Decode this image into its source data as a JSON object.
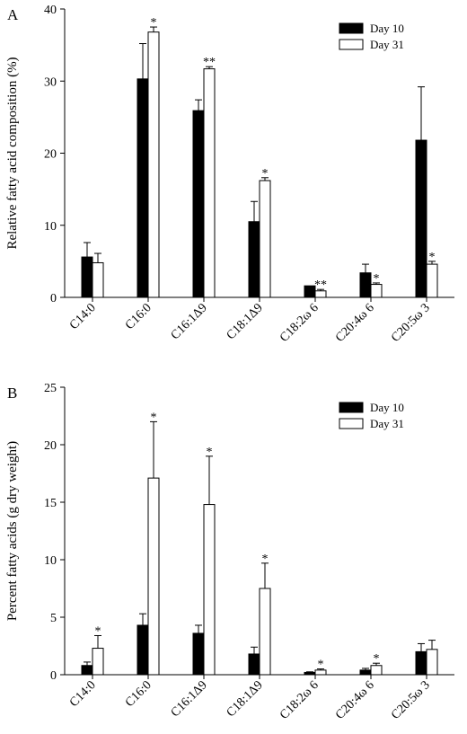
{
  "chart_data": [
    {
      "panel_letter": "A",
      "type": "bar",
      "categories": [
        "C14:0",
        "C16:0",
        "C16:1Δ9",
        "C18:1Δ9",
        "C18:2ω 6",
        "C20:4ω 6",
        "C20:5ω 3"
      ],
      "xlabel": "",
      "ylabel": "Relative fatty acid composition (%)",
      "ylim": [
        0,
        40
      ],
      "yticks": [
        0,
        10,
        20,
        30,
        40
      ],
      "grid": false,
      "legend_position": "top-right",
      "series": [
        {
          "name": "Day 10",
          "color": "#000000",
          "fill": "solid",
          "values": [
            5.6,
            30.3,
            25.9,
            10.5,
            1.6,
            3.4,
            21.8
          ],
          "error": [
            2.0,
            4.9,
            1.5,
            2.8,
            0.0,
            1.2,
            7.4
          ],
          "annotations": [
            "",
            "",
            "",
            "",
            "",
            "",
            ""
          ]
        },
        {
          "name": "Day 31",
          "color": "#ffffff",
          "fill": "open",
          "values": [
            4.8,
            36.8,
            31.7,
            16.2,
            0.9,
            1.8,
            4.6
          ],
          "error": [
            1.3,
            0.7,
            0.3,
            0.4,
            0.2,
            0.2,
            0.4
          ],
          "annotations": [
            "",
            "*",
            "**",
            "*",
            "**",
            "*",
            "*"
          ]
        }
      ]
    },
    {
      "panel_letter": "B",
      "type": "bar",
      "categories": [
        "C14:0",
        "C16:0",
        "C16:1Δ9",
        "C18:1Δ9",
        "C18:2ω 6",
        "C20:4ω 6",
        "C20:5ω 3"
      ],
      "xlabel": "",
      "ylabel": "Percent fatty acids (g dry weight)",
      "ylim": [
        0,
        25
      ],
      "yticks": [
        0,
        5,
        10,
        15,
        20,
        25
      ],
      "grid": false,
      "legend_position": "top-right",
      "series": [
        {
          "name": "Day 10",
          "color": "#000000",
          "fill": "solid",
          "values": [
            0.8,
            4.3,
            3.6,
            1.8,
            0.2,
            0.4,
            2.0
          ],
          "error": [
            0.3,
            1.0,
            0.7,
            0.6,
            0.05,
            0.15,
            0.7
          ],
          "annotations": [
            "",
            "",
            "",
            "",
            "",
            "",
            ""
          ]
        },
        {
          "name": "Day 31",
          "color": "#ffffff",
          "fill": "open",
          "values": [
            2.3,
            17.1,
            14.8,
            7.5,
            0.4,
            0.8,
            2.2
          ],
          "error": [
            1.1,
            4.9,
            4.2,
            2.2,
            0.1,
            0.2,
            0.8
          ],
          "annotations": [
            "*",
            "*",
            "*",
            "*",
            "*",
            "*",
            ""
          ]
        }
      ]
    }
  ]
}
